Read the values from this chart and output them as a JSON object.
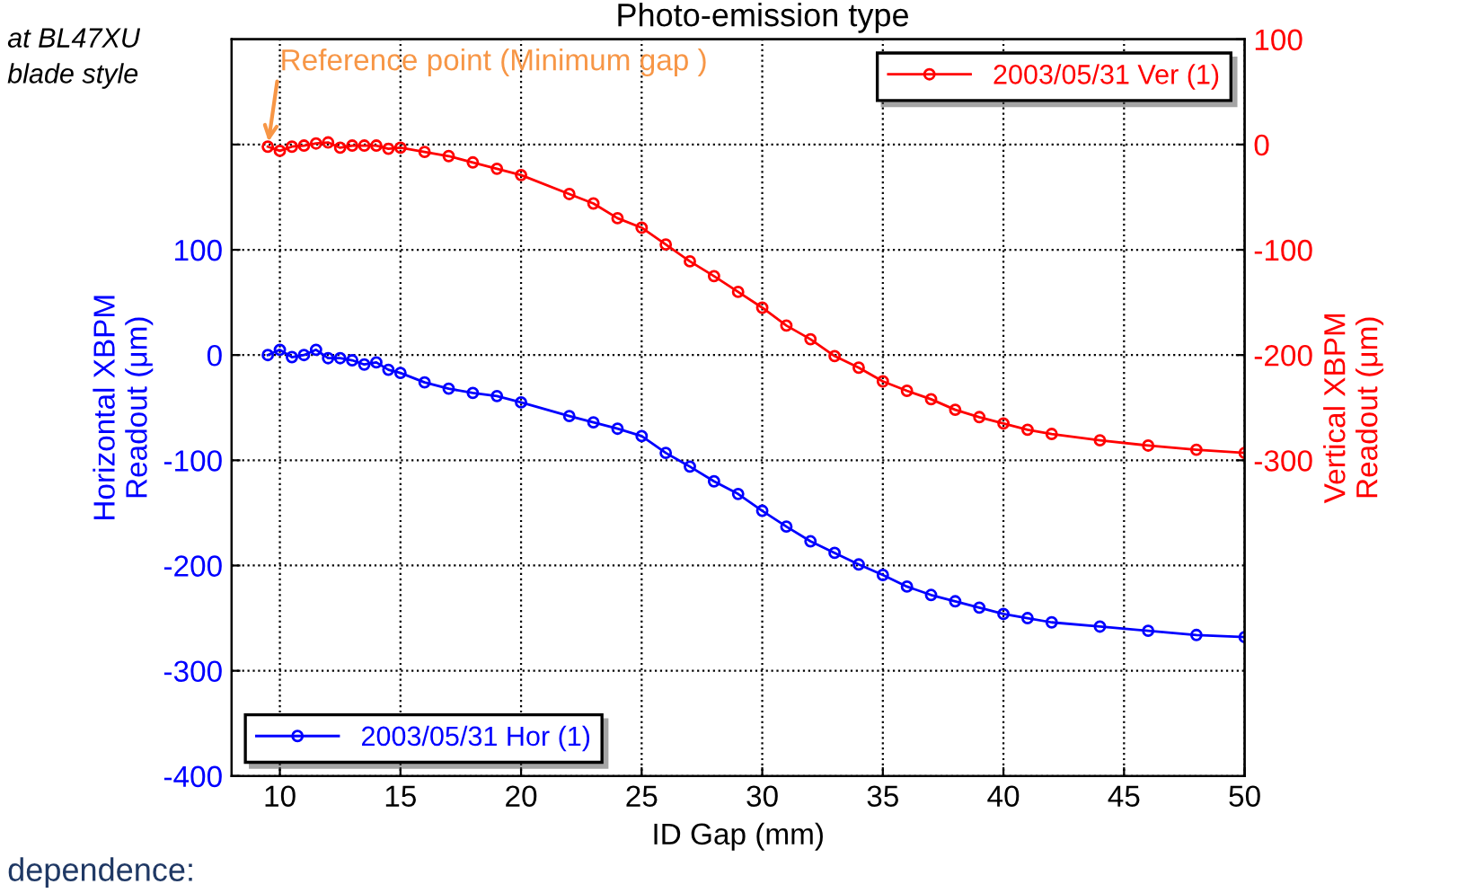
{
  "chart_data": {
    "type": "line",
    "xlabel": "ID Gap (mm)",
    "ylabel": "Horizontal XBPM\nReadout (μm)",
    "y2label": "Vertical XBPM\nReadout (μm)",
    "x": [
      9.5,
      10,
      10.5,
      11,
      11.5,
      12,
      12.5,
      13,
      13.5,
      14,
      14.5,
      15,
      16,
      17,
      18,
      19,
      20,
      22,
      23,
      24,
      25,
      26,
      27,
      28,
      29,
      30,
      31,
      32,
      33,
      34,
      35,
      36,
      37,
      38,
      39,
      40,
      41,
      42,
      44,
      46,
      48,
      50
    ],
    "series": [
      {
        "name": "2003/05/31 Hor (1)",
        "color": "#0000ff",
        "axis": "y",
        "values": [
          0,
          5,
          -2,
          0,
          5,
          -3,
          -3,
          -5,
          -9,
          -7,
          -14,
          -17,
          -26,
          -32,
          -36,
          -39,
          -45,
          -58,
          -64,
          -70,
          -77,
          -93,
          -106,
          -120,
          -132,
          -148,
          -163,
          -177,
          -188,
          -199,
          -209,
          -220,
          -228,
          -234,
          -240,
          -246,
          -250,
          -254,
          -258,
          -262,
          -266,
          -268
        ]
      },
      {
        "name": "2003/05/31 Ver (1)",
        "color": "#ff0000",
        "axis": "y2",
        "values": [
          -2,
          -6,
          -2,
          -1,
          1,
          2,
          -3,
          -1,
          -1,
          -1,
          -4,
          -3,
          -7,
          -11,
          -17,
          -23,
          -29,
          -47,
          -56,
          -70,
          -79,
          -95,
          -111,
          -125,
          -140,
          -155,
          -172,
          -185,
          -201,
          -212,
          -225,
          -234,
          -242,
          -252,
          -259,
          -265,
          -271,
          -275,
          -281,
          -286,
          -290,
          -293
        ]
      }
    ],
    "xlim": [
      8,
      50
    ],
    "xticks": [
      10,
      15,
      20,
      25,
      30,
      35,
      40,
      45,
      50
    ],
    "ylim": [
      -400,
      300
    ],
    "yticks": [
      -400,
      -300,
      -200,
      -100,
      0,
      100,
      {
        "value": 200,
        "label": null
      }
    ],
    "y2lim": [
      -600,
      100
    ],
    "y2ticks": [
      -300,
      -200,
      -100,
      0,
      100
    ],
    "grid": true,
    "marker": "circle",
    "line_style": "solid",
    "legend": [
      "bottom left",
      "top right"
    ],
    "annotations": [
      {
        "text": "Reference point (Minimum gap )",
        "x": 9.5,
        "y": 198
      },
      "Photo-emission type",
      "at BL47XU",
      "blade style",
      "dependence:"
    ]
  }
}
